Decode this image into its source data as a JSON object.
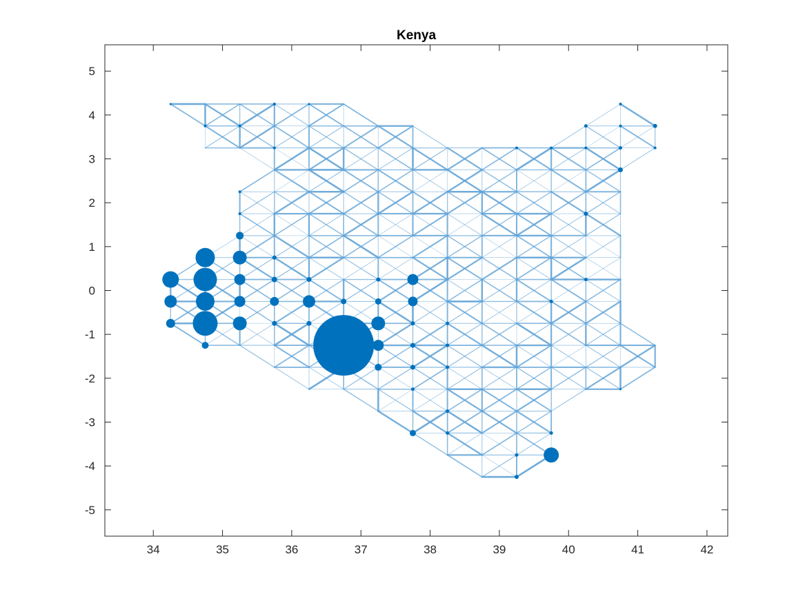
{
  "chart_data": {
    "type": "scatter",
    "title": "Kenya",
    "xlabel": "",
    "ylabel": "",
    "xlim": [
      33.3,
      42.3
    ],
    "ylim": [
      -5.6,
      5.6
    ],
    "x_ticks": [
      "34",
      "35",
      "36",
      "37",
      "38",
      "39",
      "40",
      "41",
      "42"
    ],
    "y_ticks": [
      "5",
      "4",
      "3",
      "2",
      "1",
      "0",
      "-1",
      "-2",
      "-3",
      "-4",
      "-5"
    ],
    "x_tick_values": [
      34,
      35,
      36,
      37,
      38,
      39,
      40,
      41,
      42
    ],
    "y_tick_values": [
      5,
      4,
      3,
      2,
      1,
      0,
      -1,
      -2,
      -3,
      -4,
      -5
    ],
    "grid": false,
    "legend": "none",
    "colors": {
      "nodes": "#0072BD",
      "edges": "#5fa2d6",
      "axes": "#262626"
    },
    "grid_step": 0.5,
    "nodes": [
      {
        "x": 34.25,
        "y": 0.25,
        "size": 12
      },
      {
        "x": 34.25,
        "y": -0.25,
        "size": 9
      },
      {
        "x": 34.25,
        "y": -0.75,
        "size": 6.5
      },
      {
        "x": 34.75,
        "y": 0.75,
        "size": 14
      },
      {
        "x": 34.75,
        "y": 0.25,
        "size": 17
      },
      {
        "x": 34.75,
        "y": -0.25,
        "size": 13.5
      },
      {
        "x": 34.75,
        "y": -0.75,
        "size": 18
      },
      {
        "x": 34.75,
        "y": -1.25,
        "size": 5
      },
      {
        "x": 35.25,
        "y": 1.25,
        "size": 5.5
      },
      {
        "x": 35.25,
        "y": 0.75,
        "size": 10
      },
      {
        "x": 35.25,
        "y": 0.25,
        "size": 8
      },
      {
        "x": 35.25,
        "y": -0.25,
        "size": 8
      },
      {
        "x": 35.25,
        "y": -0.75,
        "size": 10
      },
      {
        "x": 35.75,
        "y": 0.75,
        "size": 3
      },
      {
        "x": 35.75,
        "y": 0.25,
        "size": 4
      },
      {
        "x": 35.75,
        "y": -0.25,
        "size": 6.5
      },
      {
        "x": 35.75,
        "y": -0.75,
        "size": 3.5
      },
      {
        "x": 36.25,
        "y": 0.25,
        "size": 3.5
      },
      {
        "x": 36.25,
        "y": -0.25,
        "size": 9
      },
      {
        "x": 36.25,
        "y": -0.75,
        "size": 3.5
      },
      {
        "x": 36.75,
        "y": -0.25,
        "size": 4
      },
      {
        "x": 36.75,
        "y": -1.25,
        "size": 44
      },
      {
        "x": 37.25,
        "y": -0.25,
        "size": 4.5
      },
      {
        "x": 37.25,
        "y": 0.25,
        "size": 3
      },
      {
        "x": 37.25,
        "y": -0.75,
        "size": 10
      },
      {
        "x": 37.25,
        "y": -1.25,
        "size": 8
      },
      {
        "x": 37.25,
        "y": -1.75,
        "size": 5
      },
      {
        "x": 37.75,
        "y": 0.25,
        "size": 8
      },
      {
        "x": 37.75,
        "y": -0.25,
        "size": 7
      },
      {
        "x": 37.75,
        "y": -0.75,
        "size": 3
      },
      {
        "x": 37.75,
        "y": -1.25,
        "size": 3.5
      },
      {
        "x": 37.75,
        "y": -1.75,
        "size": 3.5
      },
      {
        "x": 37.75,
        "y": -2.25,
        "size": 2.5
      },
      {
        "x": 37.75,
        "y": -3.25,
        "size": 4.5
      },
      {
        "x": 38.25,
        "y": -0.75,
        "size": 2.5
      },
      {
        "x": 38.25,
        "y": -1.25,
        "size": 2.5
      },
      {
        "x": 38.25,
        "y": -1.75,
        "size": 2.5
      },
      {
        "x": 38.25,
        "y": -2.75,
        "size": 2.5
      },
      {
        "x": 38.25,
        "y": -3.25,
        "size": 2.5
      },
      {
        "x": 39.25,
        "y": -3.75,
        "size": 2.5
      },
      {
        "x": 39.25,
        "y": -4.25,
        "size": 3
      },
      {
        "x": 39.75,
        "y": -3.25,
        "size": 2.5
      },
      {
        "x": 39.75,
        "y": -3.75,
        "size": 11
      },
      {
        "x": 39.75,
        "y": -0.25,
        "size": 2.5
      },
      {
        "x": 39.25,
        "y": 3.25,
        "size": 2
      },
      {
        "x": 39.75,
        "y": 3.25,
        "size": 2
      },
      {
        "x": 40.25,
        "y": 3.75,
        "size": 2.5
      },
      {
        "x": 40.25,
        "y": 3.25,
        "size": 2
      },
      {
        "x": 40.25,
        "y": 1.75,
        "size": 3
      },
      {
        "x": 40.25,
        "y": 0.25,
        "size": 2.5
      },
      {
        "x": 40.75,
        "y": 4.25,
        "size": 2
      },
      {
        "x": 40.75,
        "y": 3.75,
        "size": 2
      },
      {
        "x": 40.75,
        "y": 3.25,
        "size": 2.5
      },
      {
        "x": 40.75,
        "y": 2.75,
        "size": 3.5
      },
      {
        "x": 41.25,
        "y": 3.75,
        "size": 3
      },
      {
        "x": 41.25,
        "y": 3.25,
        "size": 2
      },
      {
        "x": 34.25,
        "y": 4.25,
        "size": 1.5
      },
      {
        "x": 34.75,
        "y": 3.75,
        "size": 2
      },
      {
        "x": 35.25,
        "y": 3.75,
        "size": 2
      },
      {
        "x": 35.75,
        "y": 4.25,
        "size": 2
      },
      {
        "x": 35.75,
        "y": 3.25,
        "size": 2
      },
      {
        "x": 35.25,
        "y": 2.25,
        "size": 2
      },
      {
        "x": 35.25,
        "y": 1.75,
        "size": 2
      },
      {
        "x": 36.25,
        "y": 4.25,
        "size": 1.5
      },
      {
        "x": 40.75,
        "y": -2.25,
        "size": 1.5
      }
    ],
    "columns": [
      {
        "x": 34.25,
        "y_min": -0.75,
        "y_max": 0.25
      },
      {
        "x": 34.75,
        "y_min": -1.25,
        "y_max": 0.75
      },
      {
        "x": 35.25,
        "y_min": -1.25,
        "y_max": 2.25
      },
      {
        "x": 35.75,
        "y_min": -1.75,
        "y_max": 2.25
      },
      {
        "x": 36.25,
        "y_min": -2.25,
        "y_max": 2.75
      },
      {
        "x": 36.75,
        "y_min": -2.25,
        "y_max": 3.25
      },
      {
        "x": 37.25,
        "y_min": -2.75,
        "y_max": 3.25
      },
      {
        "x": 37.75,
        "y_min": -3.25,
        "y_max": 3.25
      },
      {
        "x": 38.25,
        "y_min": -3.75,
        "y_max": 3.25
      },
      {
        "x": 38.75,
        "y_min": -4.25,
        "y_max": 3.25
      },
      {
        "x": 39.25,
        "y_min": -4.25,
        "y_max": 3.25
      },
      {
        "x": 39.75,
        "y_min": -3.75,
        "y_max": 3.25
      },
      {
        "x": 40.25,
        "y_min": -2.25,
        "y_max": 3.75
      },
      {
        "x": 40.75,
        "y_min": -2.25,
        "y_max": 4.25
      },
      {
        "x": 41.25,
        "y_min": -1.75,
        "y_max": -1.25
      }
    ],
    "extra_columns": [
      {
        "x": 34.75,
        "y_min": 3.25,
        "y_max": 4.25
      },
      {
        "x": 35.25,
        "y_min": 3.25,
        "y_max": 4.25
      },
      {
        "x": 35.75,
        "y_min": 2.25,
        "y_max": 4.25
      },
      {
        "x": 36.25,
        "y_min": 2.75,
        "y_max": 4.25
      },
      {
        "x": 36.75,
        "y_min": 3.25,
        "y_max": 4.25
      },
      {
        "x": 37.25,
        "y_min": 3.25,
        "y_max": 3.75
      },
      {
        "x": 37.75,
        "y_min": 3.25,
        "y_max": 3.75
      },
      {
        "x": 40.25,
        "y_min": 3.75,
        "y_max": 3.75
      },
      {
        "x": 40.75,
        "y_min": 4.25,
        "y_max": 4.25
      },
      {
        "x": 41.25,
        "y_min": 3.25,
        "y_max": 3.75
      }
    ]
  }
}
